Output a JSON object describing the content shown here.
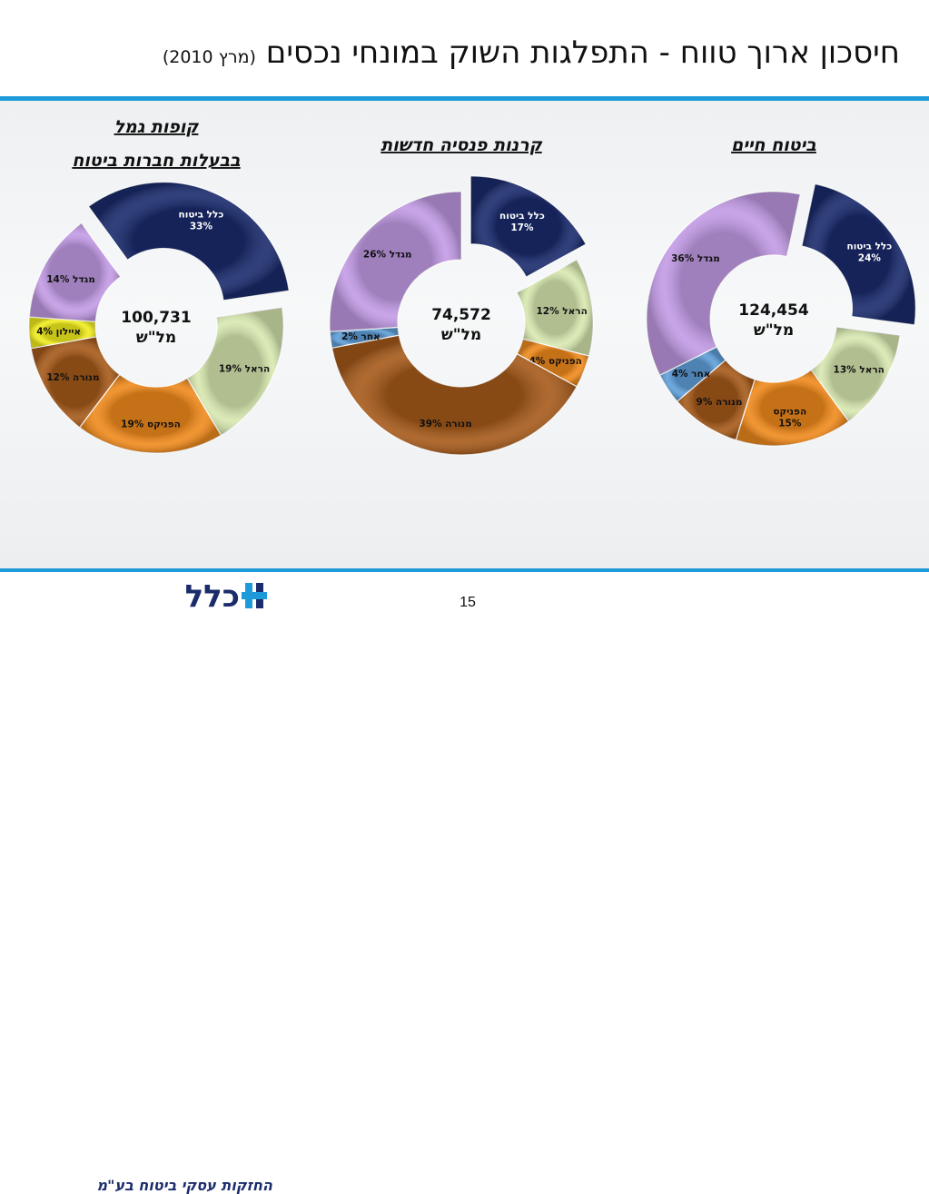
{
  "page": {
    "title": "חיסכון ארוך טווח - התפלגות השוק במונחי נכסים",
    "title_date": "(מרץ 2010)",
    "page_number": "15"
  },
  "logo": {
    "mark_text": "כלל",
    "tagline": "החזקות עסקי ביטוח בע\"מ"
  },
  "chart_data": [
    {
      "type": "donut",
      "title_lines": [
        "קופות גמל",
        "בבעלות חברות ביטוח"
      ],
      "total_value": "100,731",
      "total_unit": "מל\"ש",
      "slices": [
        {
          "name": "כלל ביטוח",
          "value": 33,
          "label": "כלל ביטוח\n33%",
          "color": "#1a2b6d",
          "text_color": "#ffffff",
          "exploded": true
        },
        {
          "name": "הראל",
          "value": 19,
          "label": "הראל 19%",
          "color": "#d8e8b0",
          "text_color": "#111111",
          "exploded": false
        },
        {
          "name": "הפניקס",
          "value": 19,
          "label": "הפניקס 19%",
          "color": "#f08a1c",
          "text_color": "#111111",
          "exploded": false
        },
        {
          "name": "מנורה",
          "value": 12,
          "label": "מנורה 12%",
          "color": "#a65a1a",
          "text_color": "#111111",
          "exploded": false
        },
        {
          "name": "איילון",
          "value": 4,
          "label": "איילון 4%",
          "color": "#f2ee1e",
          "text_color": "#111111",
          "exploded": false
        },
        {
          "name": "מגדל",
          "value": 14,
          "label": "מגדל 14%",
          "color": "#c39be6",
          "text_color": "#111111",
          "exploded": false
        }
      ]
    },
    {
      "type": "donut",
      "title_lines": [
        "קרנות פנסיה חדשות"
      ],
      "total_value": "74,572",
      "total_unit": "מל\"ש",
      "slices": [
        {
          "name": "כלל ביטוח",
          "value": 17,
          "label": "כלל ביטוח\n17%",
          "color": "#1a2b6d",
          "text_color": "#ffffff",
          "exploded": true
        },
        {
          "name": "הראל",
          "value": 12,
          "label": "הראל 12%",
          "color": "#d8e8b0",
          "text_color": "#111111",
          "exploded": false
        },
        {
          "name": "הפניקס",
          "value": 4,
          "label": "הפניקס 4%",
          "color": "#f08a1c",
          "text_color": "#111111",
          "exploded": false
        },
        {
          "name": "מנורה",
          "value": 39,
          "label": "מנורה 39%",
          "color": "#a65a1a",
          "text_color": "#111111",
          "exploded": false
        },
        {
          "name": "אחר",
          "value": 2,
          "label": "אחר 2%",
          "color": "#5f9fd9",
          "text_color": "#111111",
          "exploded": false
        },
        {
          "name": "מגדל",
          "value": 26,
          "label": "מגדל 26%",
          "color": "#c39be6",
          "text_color": "#111111",
          "exploded": false
        }
      ]
    },
    {
      "type": "donut",
      "title_lines": [
        "ביטוח חיים"
      ],
      "total_value": "124,454",
      "total_unit": "מל\"ש",
      "slices": [
        {
          "name": "כלל ביטוח",
          "value": 24,
          "label": "כלל ביטוח\n24%",
          "color": "#1a2b6d",
          "text_color": "#ffffff",
          "exploded": true
        },
        {
          "name": "הראל",
          "value": 13,
          "label": "הראל 13%",
          "color": "#d8e8b0",
          "text_color": "#111111",
          "exploded": false
        },
        {
          "name": "הפניקס",
          "value": 15,
          "label": "הפניקס\n15%",
          "color": "#f08a1c",
          "text_color": "#111111",
          "exploded": false
        },
        {
          "name": "מנורה",
          "value": 9,
          "label": "מנורה 9%",
          "color": "#a65a1a",
          "text_color": "#111111",
          "exploded": false
        },
        {
          "name": "אחר",
          "value": 4,
          "label": "אחר 4%",
          "color": "#5f9fd9",
          "text_color": "#111111",
          "exploded": false
        },
        {
          "name": "מגדל",
          "value": 36,
          "label": "מגדל 36%",
          "color": "#c39be6",
          "text_color": "#111111",
          "exploded": false
        }
      ]
    }
  ]
}
